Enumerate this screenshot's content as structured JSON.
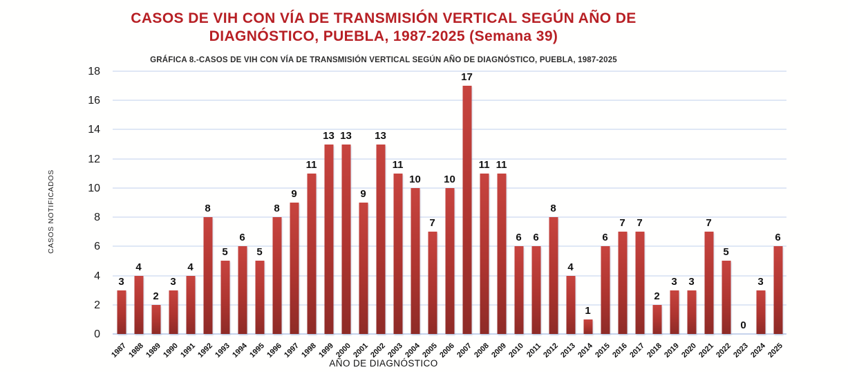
{
  "header": {
    "title_line1": "CASOS DE VIH CON VÍA DE TRANSMISIÓN VERTICAL SEGÚN AÑO DE",
    "title_line2": "DIAGNÓSTICO, PUEBLA, 1987-2025 (Semana 39)",
    "subtitle": "GRÁFICA 8.-CASOS DE VIH CON VÍA DE TRANSMISIÓN VERTICAL SEGÚN AÑO DE DIAGNÓSTICO, PUEBLA, 1987-2025"
  },
  "chart_data": {
    "type": "bar",
    "title": "GRÁFICA 8.-CASOS DE VIH CON VÍA DE TRANSMISIÓN VERTICAL SEGÚN AÑO DE DIAGNÓSTICO, PUEBLA, 1987-2025",
    "categories": [
      "1987",
      "1988",
      "1989",
      "1990",
      "1991",
      "1992",
      "1993",
      "1994",
      "1995",
      "1996",
      "1997",
      "1998",
      "1999",
      "2000",
      "2001",
      "2002",
      "2003",
      "2004",
      "2005",
      "2006",
      "2007",
      "2008",
      "2009",
      "2010",
      "2011",
      "2012",
      "2013",
      "2014",
      "2015",
      "2016",
      "2017",
      "2018",
      "2019",
      "2020",
      "2021",
      "2022",
      "2023",
      "2024",
      "2025"
    ],
    "values": [
      3,
      4,
      2,
      3,
      4,
      8,
      5,
      6,
      5,
      8,
      9,
      11,
      13,
      13,
      9,
      13,
      11,
      10,
      7,
      10,
      17,
      11,
      11,
      6,
      6,
      8,
      4,
      1,
      6,
      7,
      7,
      2,
      3,
      3,
      7,
      5,
      0,
      3,
      6
    ],
    "xlabel": "AÑO DE DIAGNÓSTICO",
    "ylabel": "CASOS NOTIFICADOS",
    "ylim": [
      0,
      18
    ],
    "ytick_step": 2,
    "grid": true,
    "legend": false,
    "data_labels": true
  },
  "colors": {
    "title": "#b71f24",
    "bar_top": "#c7443f",
    "bar_bottom": "#8e2b27",
    "gridline": "#dfe7f5",
    "baseline": "#c6d3ec"
  }
}
